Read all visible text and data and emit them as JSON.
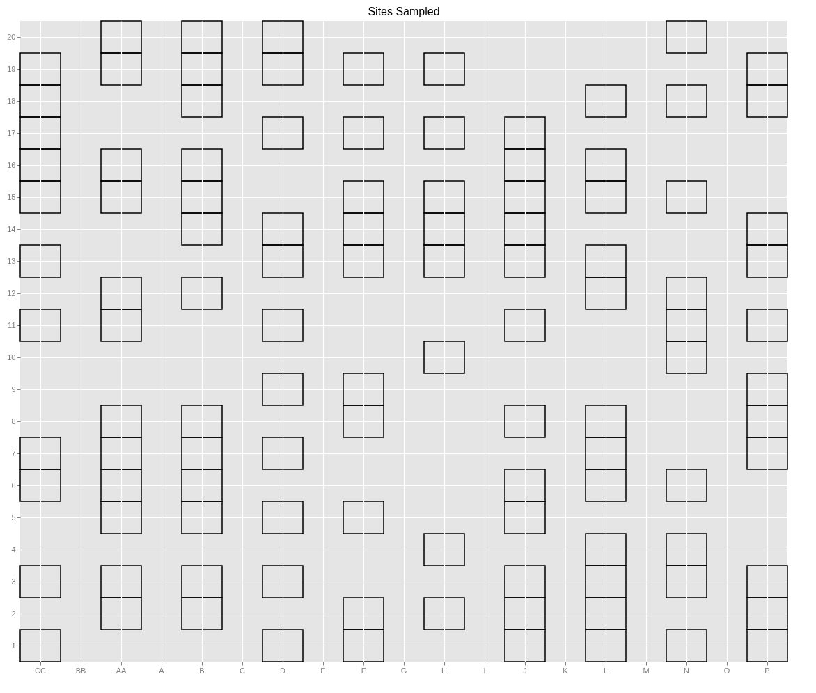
{
  "chart_data": {
    "type": "bar",
    "title": "Sites Sampled",
    "grid": true,
    "categories": [
      "CC",
      "BB",
      "AA",
      "A",
      "B",
      "C",
      "D",
      "E",
      "F",
      "G",
      "H",
      "I",
      "J",
      "K",
      "L",
      "M",
      "N",
      "O",
      "P"
    ],
    "ylim": [
      0.5,
      20.5
    ],
    "yticks": [
      1,
      2,
      3,
      4,
      5,
      6,
      7,
      8,
      9,
      10,
      11,
      12,
      13,
      14,
      15,
      16,
      17,
      18,
      19,
      20
    ],
    "series": [
      {
        "color": "#000000",
        "base": [
          0.5,
          null,
          1.5,
          null,
          1.5,
          null,
          0.5,
          null,
          0.5,
          null,
          1.5,
          null,
          0.5,
          null,
          0.5,
          null,
          0.5,
          null,
          0.5
        ],
        "values": [
          1,
          null,
          1,
          null,
          1,
          null,
          1,
          null,
          1,
          null,
          1,
          null,
          1,
          null,
          1,
          null,
          1,
          null,
          1
        ]
      },
      {
        "color": "#000000",
        "base": [
          2.5,
          null,
          2.5,
          null,
          2.5,
          null,
          2.5,
          null,
          1.5,
          null,
          3.5,
          null,
          1.5,
          null,
          1.5,
          null,
          2.5,
          null,
          1.5
        ],
        "values": [
          1,
          null,
          1,
          null,
          1,
          null,
          1,
          null,
          1,
          null,
          1,
          null,
          1,
          null,
          1,
          null,
          1,
          null,
          1
        ]
      },
      {
        "color": "#000000",
        "base": [
          5.5,
          null,
          4.5,
          null,
          4.5,
          null,
          4.5,
          null,
          4.5,
          null,
          9.5,
          null,
          2.5,
          null,
          2.5,
          null,
          3.5,
          null,
          2.5
        ],
        "values": [
          1,
          null,
          1,
          null,
          1,
          null,
          1,
          null,
          1,
          null,
          1,
          null,
          1,
          null,
          1,
          null,
          1,
          null,
          1
        ]
      },
      {
        "color": "#000000",
        "base": [
          6.5,
          null,
          5.5,
          null,
          5.5,
          null,
          6.5,
          null,
          7.5,
          null,
          12.5,
          null,
          4.5,
          null,
          3.5,
          null,
          5.5,
          null,
          6.5
        ],
        "values": [
          1,
          null,
          1,
          null,
          1,
          null,
          1,
          null,
          1,
          null,
          1,
          null,
          1,
          null,
          1,
          null,
          1,
          null,
          1
        ]
      },
      {
        "color": "#000000",
        "base": [
          10.5,
          null,
          6.5,
          null,
          6.5,
          null,
          8.5,
          null,
          8.5,
          null,
          13.5,
          null,
          5.5,
          null,
          5.5,
          null,
          9.5,
          null,
          7.5
        ],
        "values": [
          1,
          null,
          1,
          null,
          1,
          null,
          1,
          null,
          1,
          null,
          1,
          null,
          1,
          null,
          1,
          null,
          1,
          null,
          1
        ]
      },
      {
        "color": "#000000",
        "base": [
          12.5,
          null,
          7.5,
          null,
          7.5,
          null,
          10.5,
          null,
          12.5,
          null,
          14.5,
          null,
          7.5,
          null,
          6.5,
          null,
          10.5,
          null,
          8.5
        ],
        "values": [
          1,
          null,
          1,
          null,
          1,
          null,
          1,
          null,
          1,
          null,
          1,
          null,
          1,
          null,
          1,
          null,
          1,
          null,
          1
        ]
      },
      {
        "color": "#000000",
        "base": [
          14.5,
          null,
          10.5,
          null,
          11.5,
          null,
          12.5,
          null,
          13.5,
          null,
          16.5,
          null,
          10.5,
          null,
          7.5,
          null,
          11.5,
          null,
          10.5
        ],
        "values": [
          1,
          null,
          1,
          null,
          1,
          null,
          1,
          null,
          1,
          null,
          1,
          null,
          1,
          null,
          1,
          null,
          1,
          null,
          1
        ]
      },
      {
        "color": "#000000",
        "base": [
          15.5,
          null,
          11.5,
          null,
          13.5,
          null,
          13.5,
          null,
          14.5,
          null,
          18.5,
          null,
          12.5,
          null,
          11.5,
          null,
          14.5,
          null,
          12.5
        ],
        "values": [
          1,
          null,
          1,
          null,
          1,
          null,
          1,
          null,
          1,
          null,
          1,
          null,
          1,
          null,
          1,
          null,
          1,
          null,
          1
        ]
      },
      {
        "color": "#000000",
        "base": [
          16.5,
          null,
          14.5,
          null,
          14.5,
          null,
          16.5,
          null,
          16.5,
          null,
          null,
          null,
          13.5,
          null,
          12.5,
          null,
          17.5,
          null,
          13.5
        ],
        "values": [
          1,
          null,
          1,
          null,
          1,
          null,
          1,
          null,
          1,
          null,
          null,
          null,
          1,
          null,
          1,
          null,
          1,
          null,
          1
        ]
      },
      {
        "color": "#000000",
        "base": [
          17.5,
          null,
          15.5,
          null,
          15.5,
          null,
          18.5,
          null,
          18.5,
          null,
          null,
          null,
          14.5,
          null,
          14.5,
          null,
          19.5,
          null,
          17.5
        ],
        "values": [
          1,
          null,
          1,
          null,
          1,
          null,
          1,
          null,
          1,
          null,
          null,
          null,
          1,
          null,
          1,
          null,
          1,
          null,
          1
        ]
      },
      {
        "color": "#000000",
        "base": [
          18.5,
          null,
          18.5,
          null,
          17.5,
          null,
          19.5,
          null,
          null,
          null,
          null,
          null,
          15.5,
          null,
          15.5,
          null,
          null,
          null,
          18.5
        ],
        "values": [
          1,
          null,
          1,
          null,
          1,
          null,
          1,
          null,
          null,
          null,
          null,
          null,
          1,
          null,
          1,
          null,
          null,
          null,
          1
        ]
      },
      {
        "color": "#000000",
        "base": [
          null,
          null,
          19.5,
          null,
          18.5,
          null,
          null,
          null,
          null,
          null,
          null,
          null,
          16.5,
          null,
          17.5,
          null,
          null,
          null,
          null
        ],
        "values": [
          null,
          null,
          1,
          null,
          1,
          null,
          null,
          null,
          null,
          null,
          null,
          null,
          1,
          null,
          1,
          null,
          null,
          null,
          null
        ]
      },
      {
        "color": "#000000",
        "base": [
          null,
          null,
          null,
          null,
          19.5,
          null,
          null,
          null,
          null,
          null,
          null,
          null,
          null,
          null,
          null,
          null,
          null,
          null,
          null
        ],
        "values": [
          null,
          null,
          null,
          null,
          1,
          null,
          null,
          null,
          null,
          null,
          null,
          null,
          null,
          null,
          null,
          null,
          null,
          null,
          null
        ]
      }
    ]
  }
}
